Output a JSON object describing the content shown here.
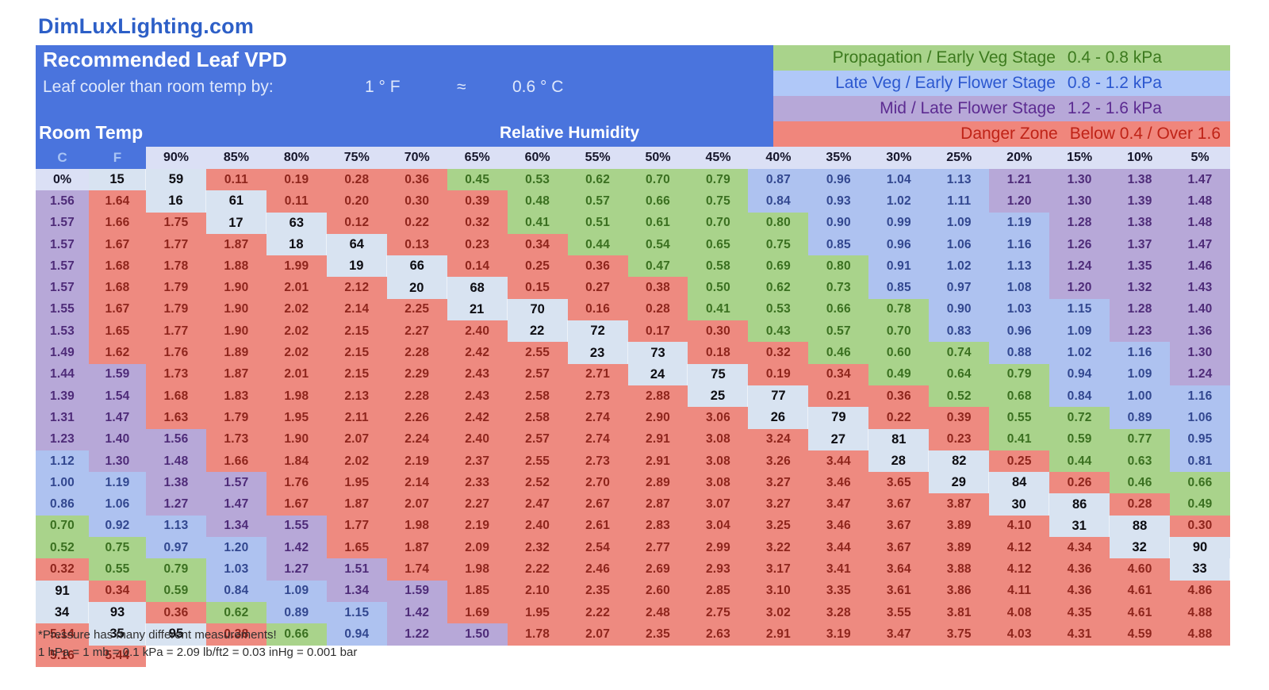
{
  "site_title": "DimLuxLighting.com",
  "header": {
    "title": "Recommended Leaf VPD",
    "subtitle_label": "Leaf cooler than room temp by:",
    "f_value": "1 ° F",
    "approx_symbol": "≈",
    "c_value": "0.6 ° C",
    "room_temp_label": "Room Temp",
    "relative_humidity_label": "Relative Humidity",
    "c_col_header": "C",
    "f_col_header": "F"
  },
  "legend": {
    "rows": [
      {
        "label": "Propagation / Early Veg Stage",
        "range": "0.4 - 0.8 kPa",
        "zone": "prop",
        "bg": "#a9d38b",
        "text": "#3c7a1e"
      },
      {
        "label": "Late Veg / Early Flower Stage",
        "range": "0.8 - 1.2 kPa",
        "zone": "late",
        "bg": "#b0c8f8",
        "text": "#2b57cf"
      },
      {
        "label": "Mid / Late Flower Stage",
        "range": "1.2 - 1.6 kPa",
        "zone": "mid",
        "bg": "#b7a8d8",
        "text": "#5c2b91"
      },
      {
        "label": "Danger Zone",
        "range": "Below 0.4 / Over 1.6",
        "zone": "danger",
        "bg": "#f0867c",
        "text": "#bf2317"
      }
    ]
  },
  "colors": {
    "title_blue": "#2d5fc7",
    "header_blue": "#4a74dd",
    "cf_letter": "#a9c4f4",
    "rh_header_bg": "#dbe0f5",
    "rh_header_text": "#15152a",
    "temp_col_bg": "#d8e3f1",
    "temp_text": "#0d0d12",
    "footer_text": "#2f2f2f"
  },
  "footer": {
    "note1": "*Pressure has many different measurements!",
    "note2": "1 hPa = 1 mb = 0.1 kPa = 2.09 lb/ft2 = 0.03 inHg = 0.001 bar"
  },
  "chart_data": {
    "type": "heatmap",
    "title": "Recommended Leaf VPD",
    "unit": "kPa",
    "x_label": "Relative Humidity",
    "y_label": "Room Temp",
    "x": [
      "90%",
      "85%",
      "80%",
      "75%",
      "70%",
      "65%",
      "60%",
      "55%",
      "50%",
      "45%",
      "40%",
      "35%",
      "30%",
      "25%",
      "20%",
      "15%",
      "10%",
      "5%",
      "0%"
    ],
    "y_c": [
      15,
      16,
      17,
      18,
      19,
      20,
      21,
      22,
      23,
      24,
      25,
      26,
      27,
      28,
      29,
      30,
      31,
      32,
      33,
      34,
      35
    ],
    "y_f": [
      59,
      61,
      63,
      64,
      66,
      68,
      70,
      72,
      73,
      75,
      77,
      79,
      81,
      82,
      84,
      86,
      88,
      90,
      91,
      93,
      95
    ],
    "values": [
      [
        0.11,
        0.19,
        0.28,
        0.36,
        0.45,
        0.53,
        0.62,
        0.7,
        0.79,
        0.87,
        0.96,
        1.04,
        1.13,
        1.21,
        1.3,
        1.38,
        1.47,
        1.56,
        1.64
      ],
      [
        0.11,
        0.2,
        0.3,
        0.39,
        0.48,
        0.57,
        0.66,
        0.75,
        0.84,
        0.93,
        1.02,
        1.11,
        1.2,
        1.3,
        1.39,
        1.48,
        1.57,
        1.66,
        1.75
      ],
      [
        0.12,
        0.22,
        0.32,
        0.41,
        0.51,
        0.61,
        0.7,
        0.8,
        0.9,
        0.99,
        1.09,
        1.19,
        1.28,
        1.38,
        1.48,
        1.57,
        1.67,
        1.77,
        1.87
      ],
      [
        0.13,
        0.23,
        0.34,
        0.44,
        0.54,
        0.65,
        0.75,
        0.85,
        0.96,
        1.06,
        1.16,
        1.26,
        1.37,
        1.47,
        1.57,
        1.68,
        1.78,
        1.88,
        1.99
      ],
      [
        0.14,
        0.25,
        0.36,
        0.47,
        0.58,
        0.69,
        0.8,
        0.91,
        1.02,
        1.13,
        1.24,
        1.35,
        1.46,
        1.57,
        1.68,
        1.79,
        1.9,
        2.01,
        2.12
      ],
      [
        0.15,
        0.27,
        0.38,
        0.5,
        0.62,
        0.73,
        0.85,
        0.97,
        1.08,
        1.2,
        1.32,
        1.43,
        1.55,
        1.67,
        1.79,
        1.9,
        2.02,
        2.14,
        2.25
      ],
      [
        0.16,
        0.28,
        0.41,
        0.53,
        0.66,
        0.78,
        0.9,
        1.03,
        1.15,
        1.28,
        1.4,
        1.53,
        1.65,
        1.77,
        1.9,
        2.02,
        2.15,
        2.27,
        2.4
      ],
      [
        0.17,
        0.3,
        0.43,
        0.57,
        0.7,
        0.83,
        0.96,
        1.09,
        1.23,
        1.36,
        1.49,
        1.62,
        1.76,
        1.89,
        2.02,
        2.15,
        2.28,
        2.42,
        2.55
      ],
      [
        0.18,
        0.32,
        0.46,
        0.6,
        0.74,
        0.88,
        1.02,
        1.16,
        1.3,
        1.44,
        1.59,
        1.73,
        1.87,
        2.01,
        2.15,
        2.29,
        2.43,
        2.57,
        2.71
      ],
      [
        0.19,
        0.34,
        0.49,
        0.64,
        0.79,
        0.94,
        1.09,
        1.24,
        1.39,
        1.54,
        1.68,
        1.83,
        1.98,
        2.13,
        2.28,
        2.43,
        2.58,
        2.73,
        2.88
      ],
      [
        0.21,
        0.36,
        0.52,
        0.68,
        0.84,
        1.0,
        1.16,
        1.31,
        1.47,
        1.63,
        1.79,
        1.95,
        2.11,
        2.26,
        2.42,
        2.58,
        2.74,
        2.9,
        3.06
      ],
      [
        0.22,
        0.39,
        0.55,
        0.72,
        0.89,
        1.06,
        1.23,
        1.4,
        1.56,
        1.73,
        1.9,
        2.07,
        2.24,
        2.4,
        2.57,
        2.74,
        2.91,
        3.08,
        3.24
      ],
      [
        0.23,
        0.41,
        0.59,
        0.77,
        0.95,
        1.12,
        1.3,
        1.48,
        1.66,
        1.84,
        2.02,
        2.19,
        2.37,
        2.55,
        2.73,
        2.91,
        3.08,
        3.26,
        3.44
      ],
      [
        0.25,
        0.44,
        0.63,
        0.81,
        1.0,
        1.19,
        1.38,
        1.57,
        1.76,
        1.95,
        2.14,
        2.33,
        2.52,
        2.7,
        2.89,
        3.08,
        3.27,
        3.46,
        3.65
      ],
      [
        0.26,
        0.46,
        0.66,
        0.86,
        1.06,
        1.27,
        1.47,
        1.67,
        1.87,
        2.07,
        2.27,
        2.47,
        2.67,
        2.87,
        3.07,
        3.27,
        3.47,
        3.67,
        3.87
      ],
      [
        0.28,
        0.49,
        0.7,
        0.92,
        1.13,
        1.34,
        1.55,
        1.77,
        1.98,
        2.19,
        2.4,
        2.61,
        2.83,
        3.04,
        3.25,
        3.46,
        3.67,
        3.89,
        4.1
      ],
      [
        0.3,
        0.52,
        0.75,
        0.97,
        1.2,
        1.42,
        1.65,
        1.87,
        2.09,
        2.32,
        2.54,
        2.77,
        2.99,
        3.22,
        3.44,
        3.67,
        3.89,
        4.12,
        4.34
      ],
      [
        0.32,
        0.55,
        0.79,
        1.03,
        1.27,
        1.51,
        1.74,
        1.98,
        2.22,
        2.46,
        2.69,
        2.93,
        3.17,
        3.41,
        3.64,
        3.88,
        4.12,
        4.36,
        4.6
      ],
      [
        0.34,
        0.59,
        0.84,
        1.09,
        1.34,
        1.59,
        1.85,
        2.1,
        2.35,
        2.6,
        2.85,
        3.1,
        3.35,
        3.61,
        3.86,
        4.11,
        4.36,
        4.61,
        4.86
      ],
      [
        0.36,
        0.62,
        0.89,
        1.15,
        1.42,
        1.69,
        1.95,
        2.22,
        2.48,
        2.75,
        3.02,
        3.28,
        3.55,
        3.81,
        4.08,
        4.35,
        4.61,
        4.88,
        5.14
      ],
      [
        0.38,
        0.66,
        0.94,
        1.22,
        1.5,
        1.78,
        2.07,
        2.35,
        2.63,
        2.91,
        3.19,
        3.47,
        3.75,
        4.03,
        4.31,
        4.59,
        4.88,
        5.16,
        5.44
      ]
    ],
    "zones": {
      "thresholds": {
        "prop_min": 0.4,
        "prop_max": 0.8,
        "late_max": 1.2,
        "mid_max": 1.6
      },
      "colors": {
        "prop": {
          "bg": "#a9d38b",
          "text": "#3a7020"
        },
        "late": {
          "bg": "#aec2f0",
          "text": "#32478f"
        },
        "mid": {
          "bg": "#b7a8d8",
          "text": "#4e2b78"
        },
        "danger": {
          "bg": "#ee8a80",
          "text": "#8e251c"
        }
      }
    },
    "zone_overrides": [
      {
        "c": 31,
        "rh": "70%",
        "zone": "late"
      }
    ],
    "grid": false,
    "legend_position": "top-right"
  }
}
